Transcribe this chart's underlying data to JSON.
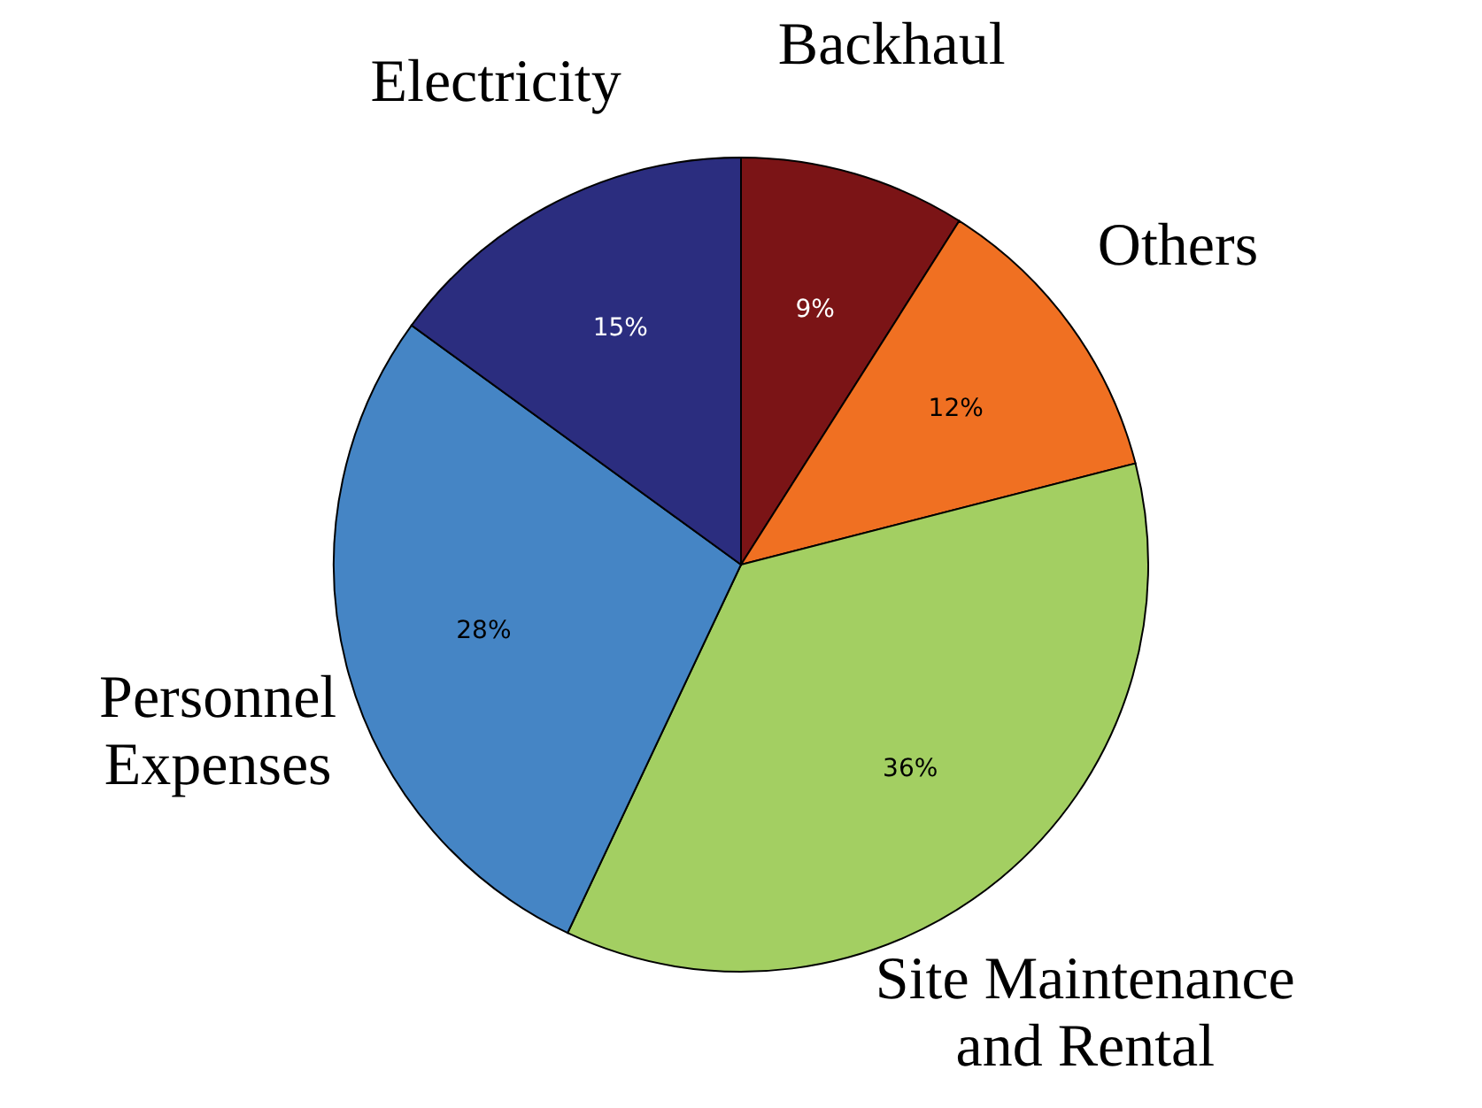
{
  "chart_data": {
    "type": "pie",
    "categories": [
      "Backhaul",
      "Others",
      "Site Maintenance and Rental",
      "Personnel Expenses",
      "Electricity"
    ],
    "values": [
      9,
      12,
      36,
      28,
      15
    ],
    "colors": [
      "#7b1416",
      "#f07022",
      "#a3cf62",
      "#4585c5",
      "#2b2d7f"
    ],
    "value_labels": [
      "9%",
      "12%",
      "36%",
      "28%",
      "15%"
    ]
  }
}
